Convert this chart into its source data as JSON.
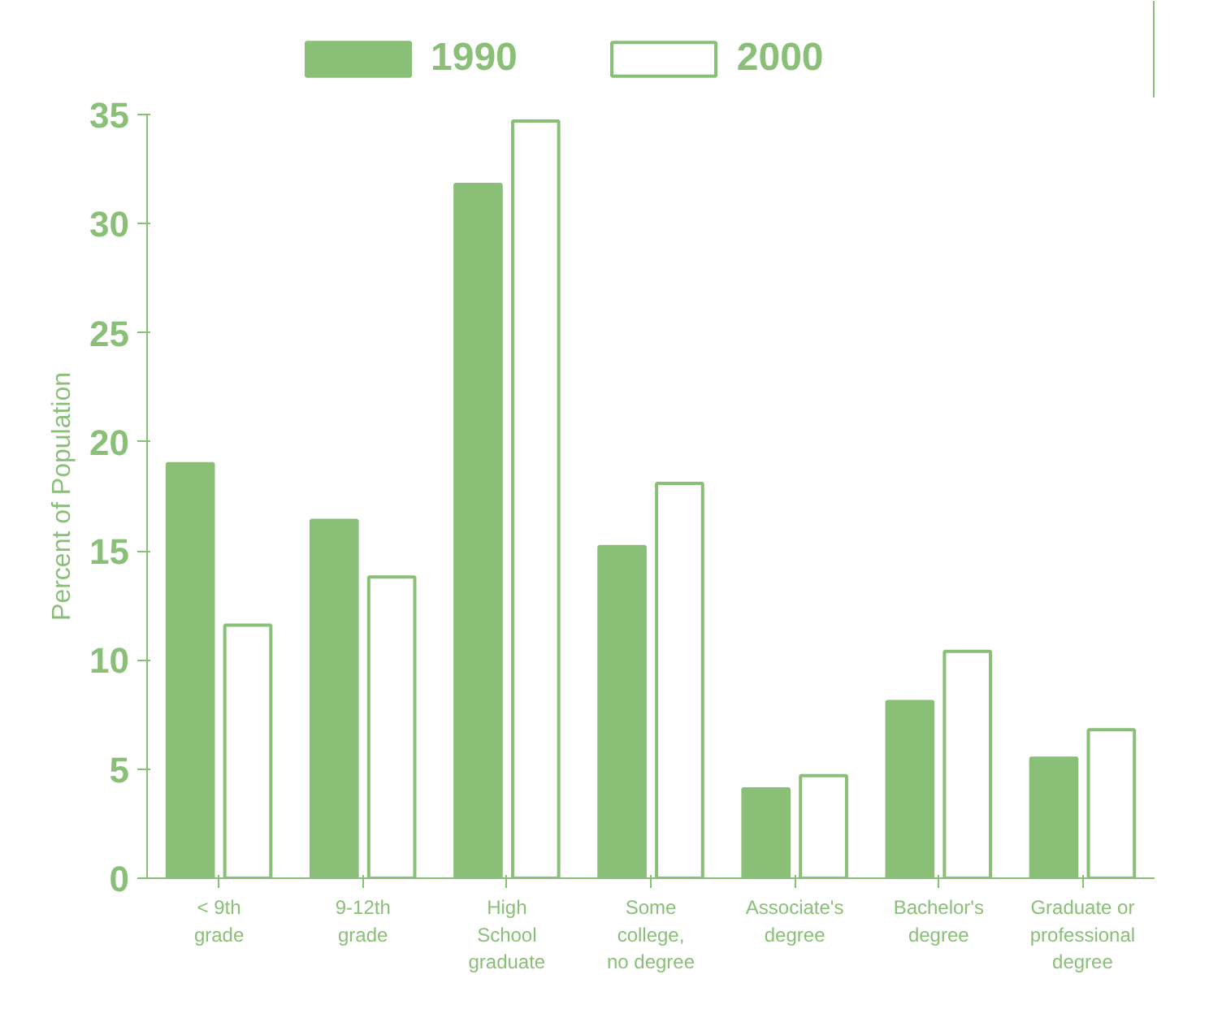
{
  "chart_data": {
    "type": "bar",
    "ylabel": "Percent of Population",
    "categories": [
      "< 9th\ngrade",
      "9-12th\ngrade",
      "High\nSchool\ngraduate",
      "Some\ncollege,\nno degree",
      "Associate's\ndegree",
      "Bachelor's\ndegree",
      "Graduate or\nprofessional\ndegree"
    ],
    "series": [
      {
        "name": "1990",
        "color": "#8abf78",
        "values": [
          19.0,
          16.4,
          31.8,
          15.2,
          4.1,
          8.1,
          5.5
        ]
      },
      {
        "name": "2000",
        "color": "#ffffff",
        "values": [
          11.6,
          13.8,
          34.7,
          18.1,
          4.7,
          10.4,
          6.8
        ]
      }
    ],
    "ylim": [
      0,
      35
    ],
    "yticks": [
      0,
      5,
      10,
      15,
      20,
      25,
      30,
      35
    ],
    "grid": false,
    "legend": "top left"
  }
}
